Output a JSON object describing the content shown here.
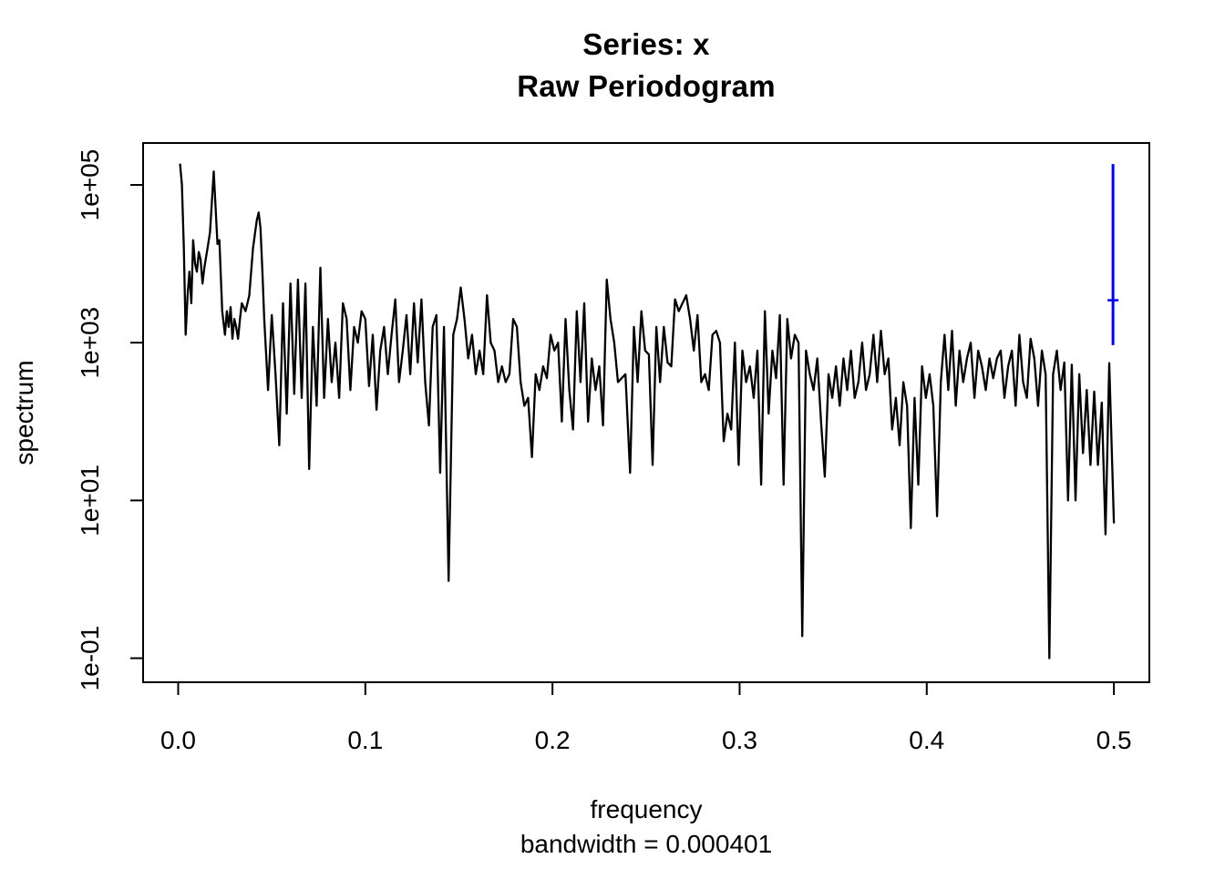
{
  "title": {
    "line1": "Series: x",
    "line2": "Raw Periodogram"
  },
  "chart_data": {
    "type": "line",
    "title": "Series: x — Raw Periodogram",
    "xlabel": "frequency",
    "ylabel": "spectrum",
    "caption": "bandwidth = 0.000401",
    "y_scale": "log",
    "xlim": [
      -0.019,
      0.519
    ],
    "ylim_log10": [
      -1.3,
      5.52
    ],
    "grid": false,
    "x_ticks": {
      "values": [
        0.0,
        0.1,
        0.2,
        0.3,
        0.4,
        0.5
      ],
      "labels": [
        "0.0",
        "0.1",
        "0.2",
        "0.3",
        "0.4",
        "0.5"
      ]
    },
    "y_ticks": {
      "log10_values": [
        5,
        3,
        1,
        -1
      ],
      "labels": [
        "1e+05",
        "1e+03",
        "1e+01",
        "1e-01"
      ]
    },
    "line_color": "#000000",
    "series_name": "raw periodogram of x",
    "y_encoding": "points are [frequency, log10(spectrum)]",
    "points_log10": [
      [
        0.001,
        5.26
      ],
      [
        0.002,
        5.0
      ],
      [
        0.003,
        4.2
      ],
      [
        0.004,
        3.1
      ],
      [
        0.005,
        3.6
      ],
      [
        0.006,
        3.9
      ],
      [
        0.007,
        3.5
      ],
      [
        0.008,
        4.3
      ],
      [
        0.009,
        4.0
      ],
      [
        0.01,
        3.9
      ],
      [
        0.011,
        4.15
      ],
      [
        0.012,
        4.05
      ],
      [
        0.013,
        3.75
      ],
      [
        0.014,
        3.95
      ],
      [
        0.015,
        4.1
      ],
      [
        0.016,
        4.25
      ],
      [
        0.017,
        4.4
      ],
      [
        0.019,
        5.17
      ],
      [
        0.02,
        4.7
      ],
      [
        0.021,
        4.25
      ],
      [
        0.022,
        4.3
      ],
      [
        0.0235,
        3.4
      ],
      [
        0.025,
        3.1
      ],
      [
        0.026,
        3.4
      ],
      [
        0.027,
        3.2
      ],
      [
        0.028,
        3.45
      ],
      [
        0.029,
        3.05
      ],
      [
        0.03,
        3.3
      ],
      [
        0.031,
        3.2
      ],
      [
        0.032,
        3.05
      ],
      [
        0.033,
        3.3
      ],
      [
        0.034,
        3.5
      ],
      [
        0.035,
        3.45
      ],
      [
        0.036,
        3.4
      ],
      [
        0.037,
        3.5
      ],
      [
        0.038,
        3.6
      ],
      [
        0.04,
        4.2
      ],
      [
        0.042,
        4.55
      ],
      [
        0.043,
        4.65
      ],
      [
        0.044,
        4.45
      ],
      [
        0.045,
        3.9
      ],
      [
        0.046,
        3.3
      ],
      [
        0.048,
        2.4
      ],
      [
        0.05,
        3.35
      ],
      [
        0.052,
        2.6
      ],
      [
        0.054,
        1.7
      ],
      [
        0.056,
        3.5
      ],
      [
        0.058,
        2.1
      ],
      [
        0.06,
        3.75
      ],
      [
        0.062,
        2.35
      ],
      [
        0.064,
        3.8
      ],
      [
        0.066,
        2.3
      ],
      [
        0.068,
        3.75
      ],
      [
        0.07,
        1.4
      ],
      [
        0.072,
        3.2
      ],
      [
        0.074,
        2.2
      ],
      [
        0.076,
        3.95
      ],
      [
        0.078,
        2.3
      ],
      [
        0.08,
        3.3
      ],
      [
        0.082,
        2.5
      ],
      [
        0.084,
        3.0
      ],
      [
        0.086,
        2.3
      ],
      [
        0.088,
        3.5
      ],
      [
        0.09,
        3.3
      ],
      [
        0.092,
        2.4
      ],
      [
        0.094,
        3.2
      ],
      [
        0.096,
        3.0
      ],
      [
        0.098,
        3.4
      ],
      [
        0.1,
        3.3
      ],
      [
        0.102,
        2.45
      ],
      [
        0.104,
        3.1
      ],
      [
        0.106,
        2.15
      ],
      [
        0.108,
        2.9
      ],
      [
        0.11,
        3.2
      ],
      [
        0.112,
        2.6
      ],
      [
        0.114,
        3.1
      ],
      [
        0.116,
        3.55
      ],
      [
        0.118,
        2.5
      ],
      [
        0.12,
        2.9
      ],
      [
        0.122,
        3.35
      ],
      [
        0.124,
        2.6
      ],
      [
        0.126,
        3.5
      ],
      [
        0.128,
        2.75
      ],
      [
        0.13,
        3.55
      ],
      [
        0.132,
        2.5
      ],
      [
        0.134,
        1.95
      ],
      [
        0.136,
        3.2
      ],
      [
        0.138,
        3.35
      ],
      [
        0.14,
        1.35
      ],
      [
        0.142,
        3.2
      ],
      [
        0.1445,
        -0.02
      ],
      [
        0.147,
        3.1
      ],
      [
        0.149,
        3.3
      ],
      [
        0.151,
        3.7
      ],
      [
        0.153,
        3.3
      ],
      [
        0.155,
        2.8
      ],
      [
        0.157,
        3.1
      ],
      [
        0.159,
        2.6
      ],
      [
        0.161,
        2.9
      ],
      [
        0.163,
        2.6
      ],
      [
        0.165,
        3.6
      ],
      [
        0.167,
        3.0
      ],
      [
        0.169,
        2.9
      ],
      [
        0.171,
        2.5
      ],
      [
        0.173,
        2.7
      ],
      [
        0.175,
        2.5
      ],
      [
        0.177,
        2.6
      ],
      [
        0.179,
        3.3
      ],
      [
        0.181,
        3.2
      ],
      [
        0.183,
        2.5
      ],
      [
        0.185,
        2.2
      ],
      [
        0.187,
        2.3
      ],
      [
        0.189,
        1.55
      ],
      [
        0.191,
        2.6
      ],
      [
        0.193,
        2.4
      ],
      [
        0.195,
        2.7
      ],
      [
        0.197,
        2.55
      ],
      [
        0.199,
        3.1
      ],
      [
        0.201,
        2.9
      ],
      [
        0.203,
        3.0
      ],
      [
        0.205,
        2.0
      ],
      [
        0.207,
        3.3
      ],
      [
        0.209,
        2.4
      ],
      [
        0.211,
        1.9
      ],
      [
        0.213,
        3.4
      ],
      [
        0.215,
        2.5
      ],
      [
        0.217,
        3.5
      ],
      [
        0.219,
        2.0
      ],
      [
        0.221,
        2.8
      ],
      [
        0.223,
        2.4
      ],
      [
        0.225,
        2.7
      ],
      [
        0.227,
        1.95
      ],
      [
        0.229,
        3.8
      ],
      [
        0.231,
        3.3
      ],
      [
        0.233,
        3.0
      ],
      [
        0.235,
        2.5
      ],
      [
        0.237,
        2.55
      ],
      [
        0.239,
        2.6
      ],
      [
        0.2415,
        1.35
      ],
      [
        0.2435,
        3.2
      ],
      [
        0.2455,
        2.5
      ],
      [
        0.2475,
        3.4
      ],
      [
        0.2495,
        2.9
      ],
      [
        0.2515,
        2.85
      ],
      [
        0.2535,
        1.45
      ],
      [
        0.2555,
        3.2
      ],
      [
        0.2575,
        2.5
      ],
      [
        0.2595,
        3.2
      ],
      [
        0.2615,
        2.75
      ],
      [
        0.2635,
        2.7
      ],
      [
        0.2655,
        3.55
      ],
      [
        0.2675,
        3.4
      ],
      [
        0.2695,
        3.5
      ],
      [
        0.2715,
        3.6
      ],
      [
        0.2735,
        3.3
      ],
      [
        0.2755,
        2.9
      ],
      [
        0.2775,
        3.35
      ],
      [
        0.2795,
        2.5
      ],
      [
        0.2815,
        2.6
      ],
      [
        0.2835,
        2.4
      ],
      [
        0.2855,
        3.1
      ],
      [
        0.2875,
        3.15
      ],
      [
        0.2895,
        3.0
      ],
      [
        0.2915,
        1.75
      ],
      [
        0.2935,
        2.1
      ],
      [
        0.2955,
        1.9
      ],
      [
        0.2975,
        3.0
      ],
      [
        0.2995,
        1.45
      ],
      [
        0.3015,
        2.9
      ],
      [
        0.3035,
        2.5
      ],
      [
        0.3055,
        2.7
      ],
      [
        0.3075,
        2.3
      ],
      [
        0.3095,
        2.9
      ],
      [
        0.3115,
        1.2
      ],
      [
        0.3135,
        3.4
      ],
      [
        0.3155,
        2.1
      ],
      [
        0.3175,
        2.9
      ],
      [
        0.3195,
        2.55
      ],
      [
        0.3215,
        3.35
      ],
      [
        0.3235,
        1.2
      ],
      [
        0.3255,
        3.3
      ],
      [
        0.3275,
        2.8
      ],
      [
        0.3295,
        3.1
      ],
      [
        0.3315,
        3.0
      ],
      [
        0.3335,
        -0.72
      ],
      [
        0.3355,
        2.9
      ],
      [
        0.3375,
        2.6
      ],
      [
        0.3395,
        2.4
      ],
      [
        0.3415,
        2.8
      ],
      [
        0.3435,
        2.0
      ],
      [
        0.3455,
        1.3
      ],
      [
        0.3475,
        2.6
      ],
      [
        0.3495,
        2.3
      ],
      [
        0.3515,
        2.7
      ],
      [
        0.3535,
        2.2
      ],
      [
        0.3555,
        2.8
      ],
      [
        0.3575,
        2.4
      ],
      [
        0.3595,
        2.9
      ],
      [
        0.3615,
        2.3
      ],
      [
        0.3635,
        2.5
      ],
      [
        0.3655,
        3.0
      ],
      [
        0.3675,
        2.4
      ],
      [
        0.3695,
        2.6
      ],
      [
        0.3715,
        3.1
      ],
      [
        0.3735,
        2.5
      ],
      [
        0.3755,
        3.15
      ],
      [
        0.3775,
        2.6
      ],
      [
        0.3795,
        2.8
      ],
      [
        0.3815,
        1.9
      ],
      [
        0.3835,
        2.3
      ],
      [
        0.3855,
        1.7
      ],
      [
        0.3875,
        2.5
      ],
      [
        0.3895,
        2.2
      ],
      [
        0.3915,
        0.65
      ],
      [
        0.3935,
        2.3
      ],
      [
        0.3955,
        1.2
      ],
      [
        0.3975,
        2.7
      ],
      [
        0.3995,
        2.3
      ],
      [
        0.4015,
        2.6
      ],
      [
        0.4035,
        2.2
      ],
      [
        0.4055,
        0.8
      ],
      [
        0.4075,
        2.5
      ],
      [
        0.4095,
        3.1
      ],
      [
        0.4115,
        2.4
      ],
      [
        0.4135,
        3.15
      ],
      [
        0.4155,
        2.2
      ],
      [
        0.4175,
        2.9
      ],
      [
        0.4195,
        2.5
      ],
      [
        0.4215,
        2.8
      ],
      [
        0.4235,
        3.0
      ],
      [
        0.4255,
        2.3
      ],
      [
        0.4275,
        2.9
      ],
      [
        0.4295,
        2.7
      ],
      [
        0.4315,
        2.4
      ],
      [
        0.4335,
        2.8
      ],
      [
        0.4355,
        2.55
      ],
      [
        0.4375,
        2.8
      ],
      [
        0.4395,
        2.9
      ],
      [
        0.4415,
        2.3
      ],
      [
        0.4435,
        2.7
      ],
      [
        0.4455,
        2.9
      ],
      [
        0.4475,
        2.2
      ],
      [
        0.4495,
        3.1
      ],
      [
        0.4515,
        2.5
      ],
      [
        0.4535,
        2.3
      ],
      [
        0.4555,
        3.05
      ],
      [
        0.4575,
        2.8
      ],
      [
        0.4595,
        2.2
      ],
      [
        0.4615,
        2.9
      ],
      [
        0.4635,
        2.6
      ],
      [
        0.4655,
        -1.0
      ],
      [
        0.4675,
        2.6
      ],
      [
        0.4695,
        2.9
      ],
      [
        0.4715,
        2.4
      ],
      [
        0.4735,
        2.75
      ],
      [
        0.4755,
        1.0
      ],
      [
        0.4775,
        2.72
      ],
      [
        0.4795,
        1.0
      ],
      [
        0.4815,
        2.6
      ],
      [
        0.4835,
        1.6
      ],
      [
        0.4855,
        2.4
      ],
      [
        0.4875,
        1.45
      ],
      [
        0.4895,
        2.38
      ],
      [
        0.4915,
        1.45
      ],
      [
        0.4935,
        2.24
      ],
      [
        0.4955,
        0.57
      ],
      [
        0.4975,
        2.74
      ],
      [
        0.5,
        0.72
      ]
    ],
    "ci_bar": {
      "frequency": 0.5,
      "lower": 930,
      "center": 3450,
      "upper": 184000,
      "color": "#0000ff"
    }
  }
}
